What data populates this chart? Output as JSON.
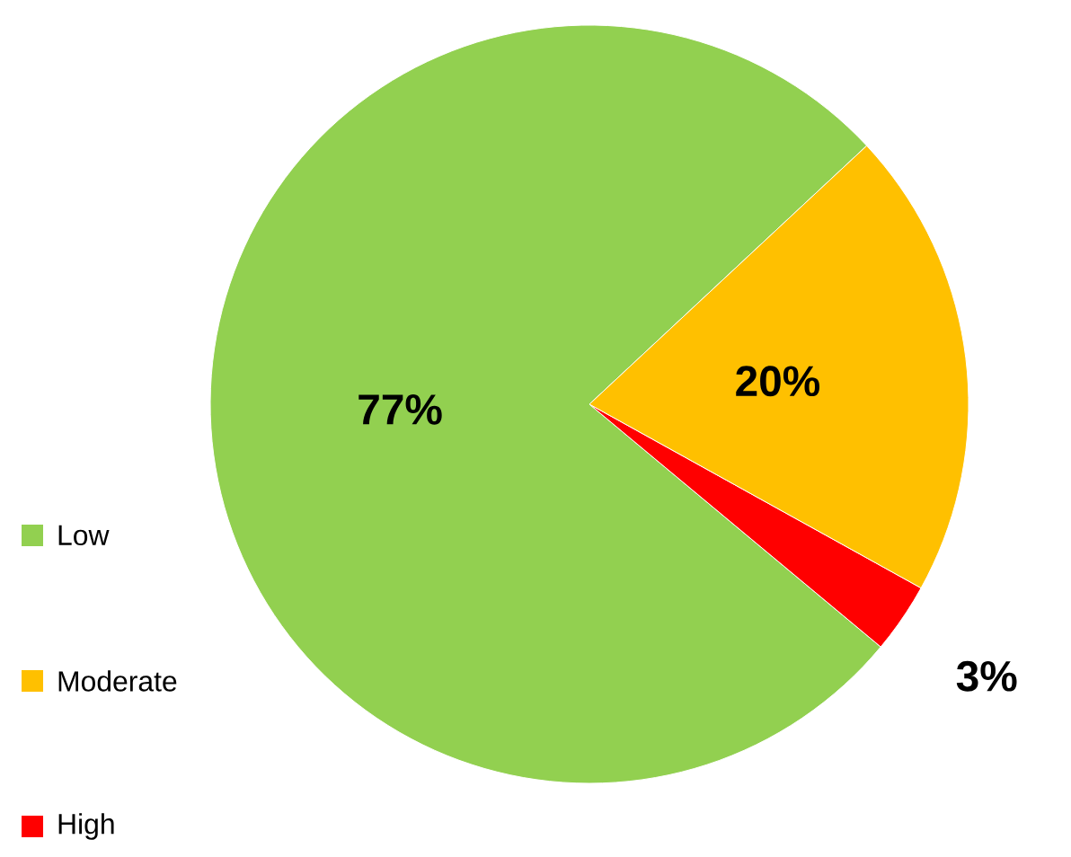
{
  "chart_data": {
    "type": "pie",
    "categories": [
      "Low",
      "Moderate",
      "High"
    ],
    "values": [
      77,
      20,
      3
    ],
    "value_labels": [
      "77%",
      "20%",
      "3%"
    ],
    "colors": [
      "#92d050",
      "#ffc000",
      "#ff0000"
    ],
    "legend": "left"
  }
}
